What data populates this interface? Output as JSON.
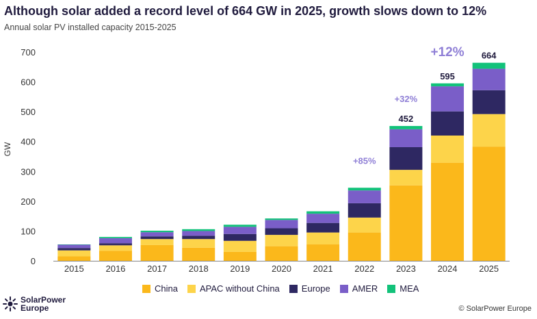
{
  "title": "Although solar added a record level of 664 GW in 2025, growth slows down to 12%",
  "subtitle": "Annual solar PV installed capacity 2015-2025",
  "chart_data": {
    "type": "bar",
    "stacked": true,
    "categories": [
      "2015",
      "2016",
      "2017",
      "2018",
      "2019",
      "2020",
      "2021",
      "2022",
      "2023",
      "2024",
      "2025"
    ],
    "series": [
      {
        "name": "China",
        "color": "#fbb81b",
        "values": [
          15,
          34,
          53,
          44,
          30,
          49,
          55,
          95,
          253,
          329,
          383
        ]
      },
      {
        "name": "APAC without China",
        "color": "#fdd44a",
        "values": [
          20,
          18,
          20,
          29,
          37,
          38,
          40,
          50,
          52,
          91,
          109
        ]
      },
      {
        "name": "Europe",
        "color": "#2e2862",
        "values": [
          8,
          7,
          9,
          11,
          23,
          22,
          32,
          48,
          76,
          81,
          80
        ]
      },
      {
        "name": "AMER",
        "color": "#7a5ec8",
        "values": [
          11,
          17,
          14,
          16,
          24,
          28,
          31,
          43,
          60,
          84,
          72
        ]
      },
      {
        "name": "MEA",
        "color": "#12c27a",
        "values": [
          1,
          4,
          5,
          6,
          7,
          5,
          8,
          9,
          11,
          10,
          20
        ]
      }
    ],
    "totals": [
      {
        "category": "2023",
        "label": "452"
      },
      {
        "category": "2024",
        "label": "595"
      },
      {
        "category": "2025",
        "label": "664"
      }
    ],
    "growth_annotations": [
      {
        "category": "2022",
        "label": "+85%"
      },
      {
        "category": "2023",
        "label": "+32%"
      },
      {
        "category": "2024",
        "label": "+12%"
      }
    ],
    "ylabel": "GW",
    "ylim": [
      0,
      700
    ],
    "yticks": [
      0,
      100,
      200,
      300,
      400,
      500,
      600,
      700
    ],
    "grid": false,
    "legend_position": "bottom"
  },
  "footer": {
    "logo_line1": "SolarPower",
    "logo_line2": "Europe",
    "copyright": "© SolarPower Europe"
  },
  "colors": {
    "text": "#1f1a3d",
    "growth": "#8f7fd6",
    "axis": "#333333"
  },
  "icons": [
    "sun-logo-icon"
  ]
}
